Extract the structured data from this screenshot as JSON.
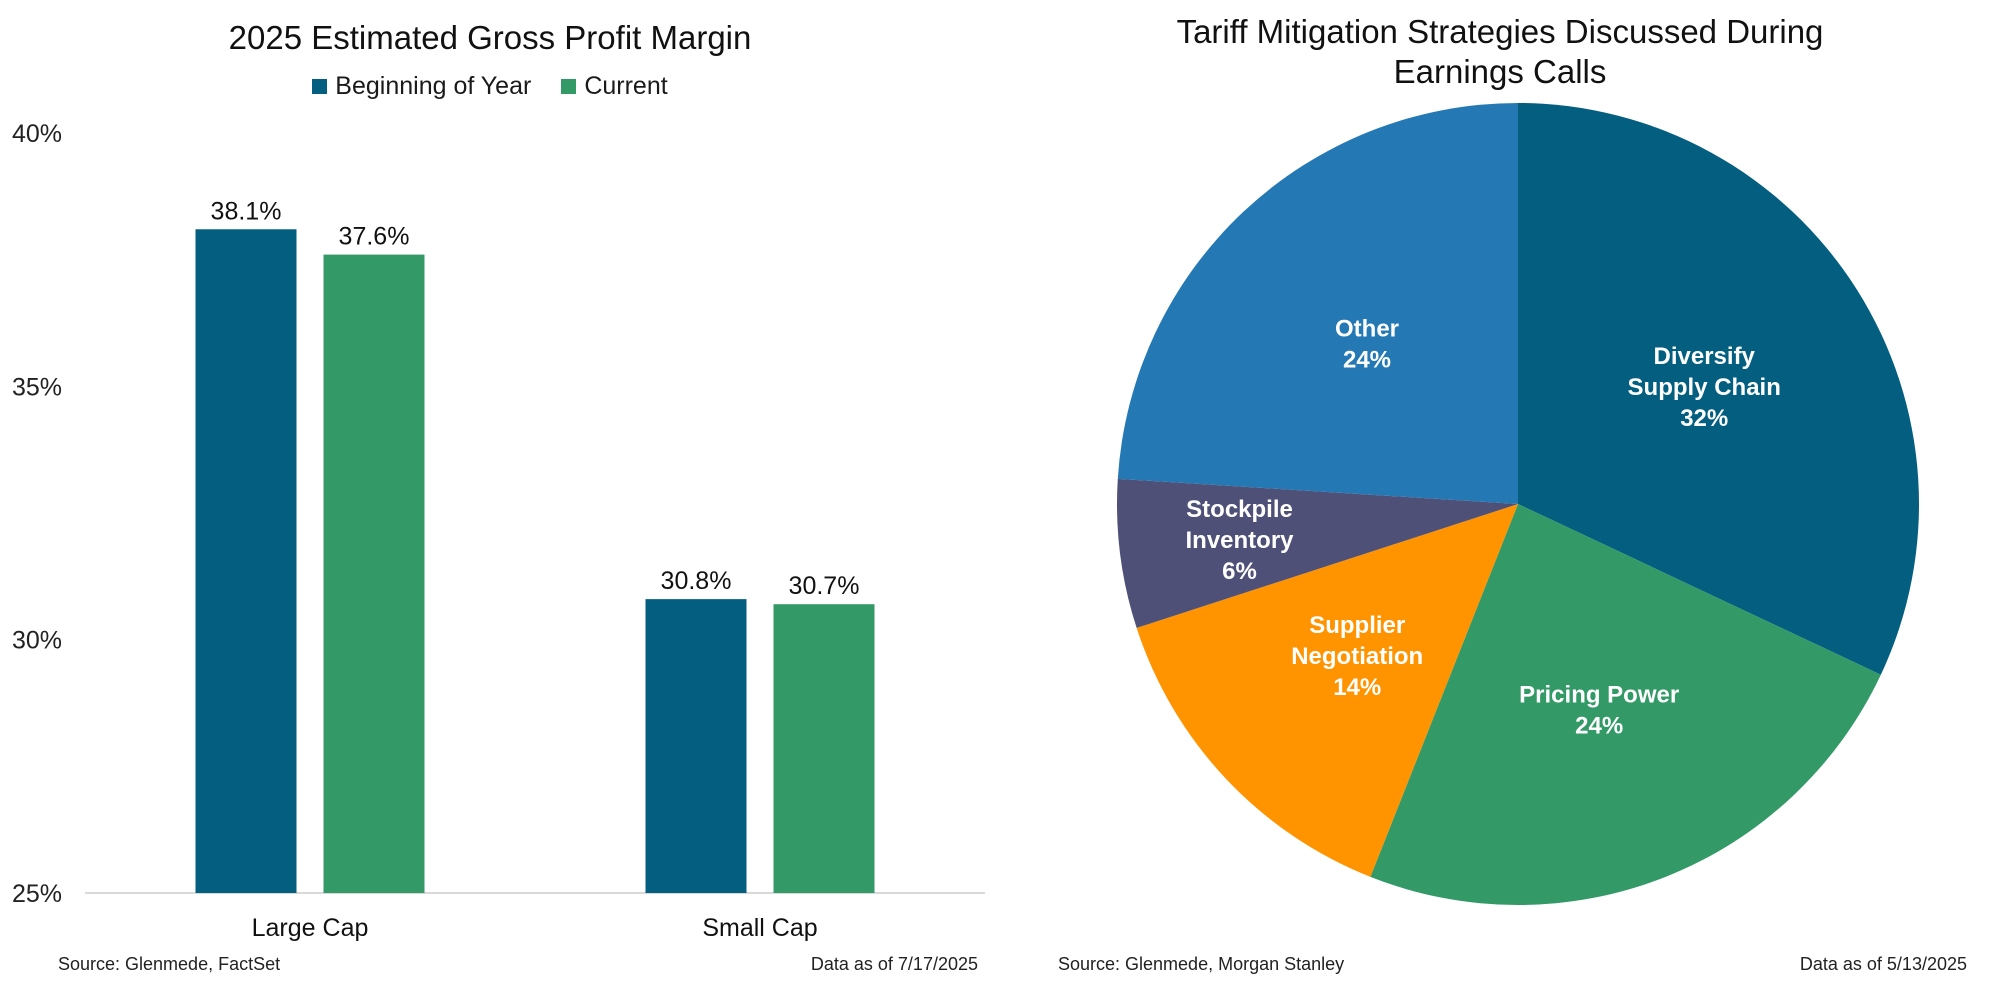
{
  "colors": {
    "navy": "#035E80",
    "green": "#339A67",
    "blue": "#2478B3",
    "slate": "#4E5077",
    "orange": "#FF9300",
    "axis": "#d9d9d9"
  },
  "left_panel": {
    "source": "Source: Glenmede, FactSet",
    "data_as_of": "Data as of 7/17/2025"
  },
  "right_panel": {
    "source": "Source: Glenmede, Morgan Stanley",
    "data_as_of": "Data as of 5/13/2025"
  },
  "chart_data": [
    {
      "type": "bar",
      "title": "2025 Estimated Gross Profit Margin",
      "categories": [
        "Large Cap",
        "Small Cap"
      ],
      "series": [
        {
          "name": "Beginning of Year",
          "values": [
            38.1,
            30.8
          ],
          "labels": [
            "38.1%",
            "30.8%"
          ],
          "color": "#035E80"
        },
        {
          "name": "Current",
          "values": [
            37.6,
            30.7
          ],
          "labels": [
            "37.6%",
            "30.7%"
          ],
          "color": "#339A67"
        }
      ],
      "ylim": [
        25,
        40
      ],
      "yticks": [
        25,
        30,
        35,
        40
      ],
      "ytick_labels": [
        "25%",
        "30%",
        "35%",
        "40%"
      ],
      "xlabel": "",
      "ylabel": "",
      "grid": false,
      "legend_position": "top-center"
    },
    {
      "type": "pie",
      "title": "Tariff Mitigation Strategies Discussed During\nEarnings Calls",
      "slices": [
        {
          "label": "Diversify Supply Chain",
          "lines": [
            "Diversify",
            "Supply Chain",
            "32%"
          ],
          "value": 32,
          "color": "#035E80"
        },
        {
          "label": "Pricing Power",
          "lines": [
            "Pricing Power",
            "24%"
          ],
          "value": 24,
          "color": "#339A67"
        },
        {
          "label": "Supplier Negotiation",
          "lines": [
            "Supplier",
            "Negotiation",
            "14%"
          ],
          "value": 14,
          "color": "#FF9300"
        },
        {
          "label": "Stockpile Inventory",
          "lines": [
            "Stockpile",
            "Inventory",
            "6%"
          ],
          "value": 6,
          "color": "#4E5077"
        },
        {
          "label": "Other",
          "lines": [
            "Other",
            "24%"
          ],
          "value": 24,
          "color": "#2478B3"
        }
      ],
      "start_angle": "12 o'clock",
      "direction": "clockwise",
      "legend_position": "none"
    }
  ]
}
